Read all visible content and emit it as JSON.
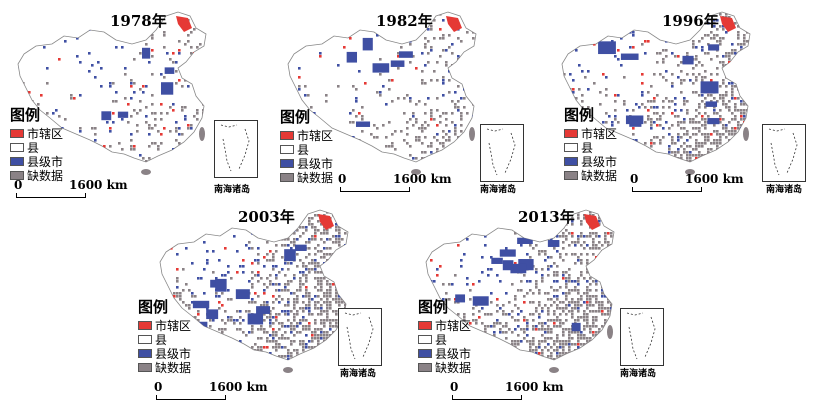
{
  "figure": {
    "legend": {
      "title": "图例",
      "items": [
        {
          "label": "市辖区",
          "color": "#e53935"
        },
        {
          "label": "县",
          "color": "#ffffff"
        },
        {
          "label": "县级市",
          "color": "#3f4fa3"
        },
        {
          "label": "缺数据",
          "color": "#8a8286"
        }
      ]
    },
    "scale": {
      "zero": "0",
      "distance": "1600 km"
    },
    "inset_label": "南海诸岛",
    "panels": [
      {
        "year": "1978年",
        "density": 0.25
      },
      {
        "year": "1982年",
        "density": 0.32
      },
      {
        "year": "1996年",
        "density": 0.7
      },
      {
        "year": "2003年",
        "density": 0.85
      },
      {
        "year": "2013年",
        "density": 0.9
      }
    ]
  }
}
